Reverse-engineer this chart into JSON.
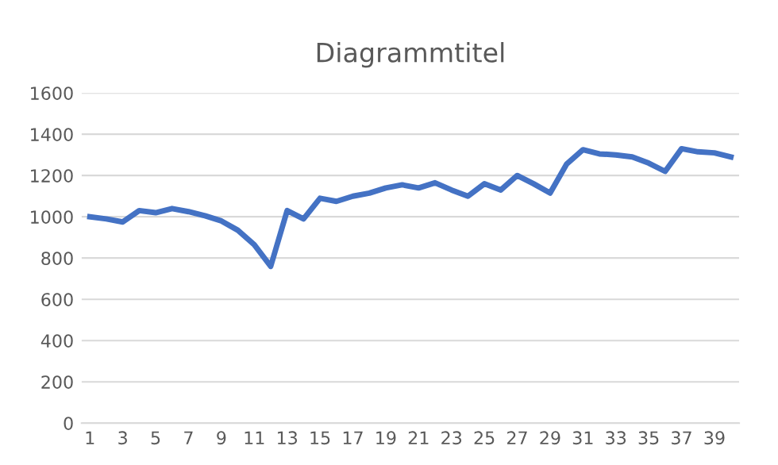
{
  "chart_data": {
    "type": "line",
    "title": "Diagrammtitel",
    "categories": [
      "1",
      null,
      "3",
      null,
      "5",
      null,
      "7",
      null,
      "9",
      null,
      "11",
      null,
      "13",
      null,
      "15",
      null,
      "17",
      null,
      "19",
      null,
      "21",
      null,
      "23",
      null,
      "25",
      null,
      "27",
      null,
      "29",
      null,
      "31",
      null,
      "33",
      null,
      "35",
      null,
      "37",
      null,
      "39",
      null
    ],
    "series": [
      {
        "color": "#4472c4",
        "values": [
          1000,
          990,
          975,
          1030,
          1020,
          1040,
          1025,
          1005,
          980,
          935,
          865,
          760,
          1030,
          990,
          1090,
          1075,
          1100,
          1115,
          1140,
          1155,
          1140,
          1165,
          1130,
          1100,
          1160,
          1130,
          1200,
          1160,
          1115,
          1255,
          1325,
          1305,
          1300,
          1290,
          1260,
          1220,
          1330,
          1315,
          1310,
          1290
        ]
      }
    ],
    "ylim": [
      0,
      1600
    ],
    "yticks": [
      0,
      200,
      400,
      600,
      800,
      1000,
      1200,
      1400,
      1600
    ],
    "grid": "y",
    "legend": false,
    "marker": "none",
    "line_style": "solid"
  }
}
